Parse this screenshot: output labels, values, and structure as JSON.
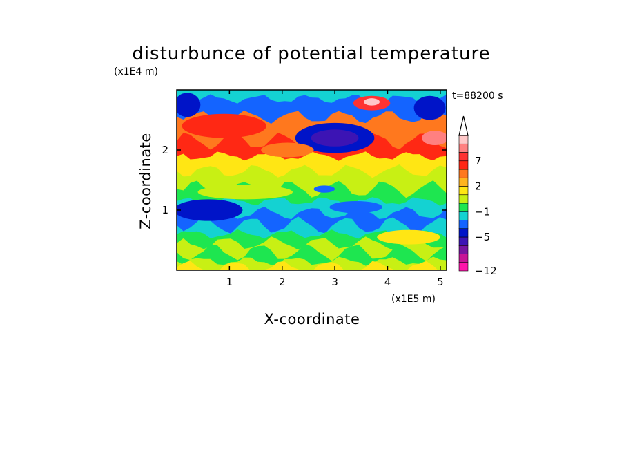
{
  "chart_data": {
    "type": "heatmap",
    "title": "disturbunce of potential temperature",
    "xlabel": "X-coordinate",
    "ylabel": "Z-coordinate",
    "x_unit_label": "(x1E5 m)",
    "y_unit_label": "(x1E4 m)",
    "time_label": "t=88200 s",
    "x_ticks": [
      "1",
      "2",
      "3",
      "4",
      "5"
    ],
    "y_ticks": [
      "1",
      "2"
    ],
    "xlim": [
      0,
      5.12
    ],
    "ylim": [
      0,
      3.0
    ],
    "colorbar": {
      "ticks": [
        "7",
        "2",
        "−1",
        "−5",
        "−12"
      ],
      "colors": [
        "#ff14aa",
        "#c81496",
        "#7814a0",
        "#3c14b4",
        "#0014c8",
        "#1464ff",
        "#14d2d2",
        "#1ee650",
        "#c8f014",
        "#ffe614",
        "#ffb41e",
        "#ff781e",
        "#ff2814",
        "#ff3232",
        "#ff8080",
        "#ffc8c8"
      ],
      "extend": "max"
    },
    "bands": [
      {
        "z": 2.85,
        "level": 5
      },
      {
        "z": 2.55,
        "level": 11
      },
      {
        "z": 2.15,
        "level": 12
      },
      {
        "z": 1.9,
        "level": 9
      },
      {
        "z": 1.65,
        "level": 8
      },
      {
        "z": 1.35,
        "level": 7
      },
      {
        "z": 1.15,
        "level": 6
      },
      {
        "z": 0.95,
        "level": 5
      },
      {
        "z": 0.75,
        "level": 6
      },
      {
        "z": 0.6,
        "level": 7
      },
      {
        "z": 0.45,
        "level": 8
      },
      {
        "z": 0.3,
        "level": 7
      },
      {
        "z": 0.15,
        "level": 8
      },
      {
        "z": 0.05,
        "level": 9
      }
    ],
    "features": [
      {
        "x": 3.0,
        "z": 2.2,
        "rx": 0.75,
        "rz": 0.25,
        "level": 4
      },
      {
        "x": 3.0,
        "z": 2.2,
        "rx": 0.45,
        "rz": 0.14,
        "level": 3
      },
      {
        "x": 0.6,
        "z": 1.0,
        "rx": 0.65,
        "rz": 0.18,
        "level": 4
      },
      {
        "x": 0.9,
        "z": 2.4,
        "rx": 0.8,
        "rz": 0.2,
        "level": 12
      },
      {
        "x": 3.7,
        "z": 2.78,
        "rx": 0.35,
        "rz": 0.12,
        "level": 13
      },
      {
        "x": 3.7,
        "z": 2.8,
        "rx": 0.15,
        "rz": 0.06,
        "level": 15
      },
      {
        "x": 4.9,
        "z": 2.2,
        "rx": 0.25,
        "rz": 0.12,
        "level": 14
      },
      {
        "x": 0.2,
        "z": 2.75,
        "rx": 0.25,
        "rz": 0.2,
        "level": 4
      },
      {
        "x": 4.8,
        "z": 2.7,
        "rx": 0.3,
        "rz": 0.2,
        "level": 4
      },
      {
        "x": 2.1,
        "z": 2.0,
        "rx": 0.5,
        "rz": 0.12,
        "level": 11
      },
      {
        "x": 4.4,
        "z": 0.55,
        "rx": 0.6,
        "rz": 0.12,
        "level": 9
      },
      {
        "x": 1.3,
        "z": 1.3,
        "rx": 0.9,
        "rz": 0.12,
        "level": 8
      },
      {
        "x": 3.4,
        "z": 1.05,
        "rx": 0.5,
        "rz": 0.1,
        "level": 5
      },
      {
        "x": 2.8,
        "z": 1.35,
        "rx": 0.2,
        "rz": 0.06,
        "level": 5
      }
    ]
  }
}
